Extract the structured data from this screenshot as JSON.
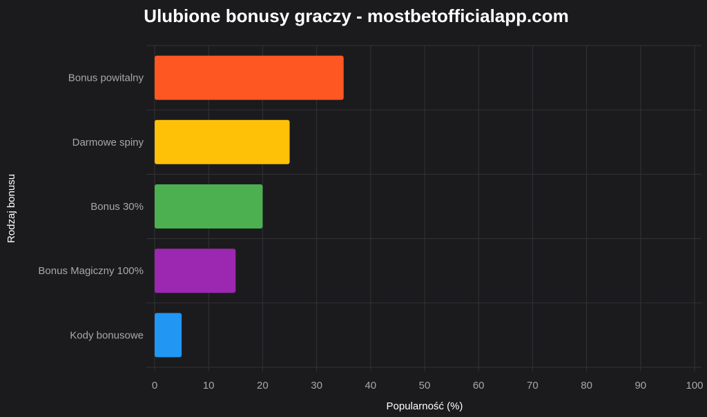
{
  "chart_data": {
    "type": "bar",
    "orientation": "horizontal",
    "title": "Ulubione bonusy graczy - mostbetofficialapp.com",
    "xlabel": "Popularność (%)",
    "ylabel": "Rodzaj bonusu",
    "categories": [
      "Bonus powitalny",
      "Darmowe spiny",
      "Bonus 30%",
      "Bonus Magiczny 100%",
      "Kody bonusowe"
    ],
    "values": [
      35,
      25,
      20,
      15,
      5
    ],
    "bar_colors": [
      "#ff5722",
      "#ffc107",
      "#4caf50",
      "#9c27b0",
      "#2196f3"
    ],
    "xlim": [
      0,
      100
    ],
    "xticks": [
      0,
      10,
      20,
      30,
      40,
      50,
      60,
      70,
      80,
      90,
      100
    ],
    "grid": true,
    "legend": "none"
  },
  "colors": {
    "background": "#1b1b1d",
    "grid": "#333336",
    "title": "#ffffff",
    "axis_title": "#ffffff",
    "label": "#a8a8a8"
  }
}
